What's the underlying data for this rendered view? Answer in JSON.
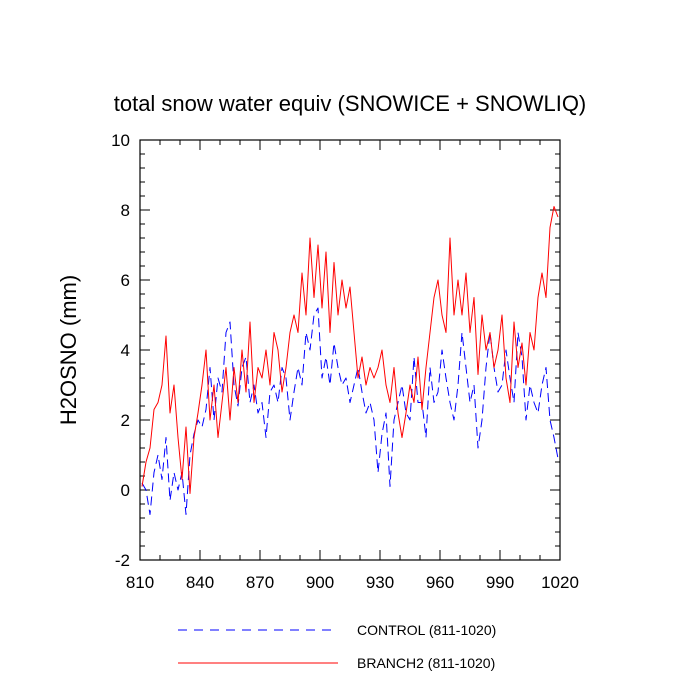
{
  "chart_data": {
    "type": "line",
    "title": "total snow water equiv (SNOWICE + SNOWLIQ)",
    "xlabel": "",
    "ylabel": "H2OSNO  (mm)",
    "xlim": [
      810,
      1020
    ],
    "ylim": [
      -2,
      10
    ],
    "xticks": [
      810,
      840,
      870,
      900,
      930,
      960,
      990,
      1020
    ],
    "xtick_labels": [
      "810",
      "840",
      "870",
      "900",
      "930",
      "960",
      "990",
      "1020"
    ],
    "yticks": [
      -2,
      0,
      2,
      4,
      6,
      8,
      10
    ],
    "ytick_labels": [
      "-2",
      "0",
      "2",
      "4",
      "6",
      "8",
      "10"
    ],
    "grid": false,
    "legend_position": "bottom",
    "series": [
      {
        "name": "CONTROL (811-1020)",
        "color": "#0000ff",
        "dash": "dashed",
        "x": [
          811,
          813,
          815,
          817,
          819,
          821,
          823,
          825,
          827,
          829,
          831,
          833,
          835,
          837,
          839,
          841,
          843,
          845,
          847,
          849,
          851,
          853,
          855,
          857,
          859,
          861,
          863,
          865,
          867,
          869,
          871,
          873,
          875,
          877,
          879,
          881,
          883,
          885,
          887,
          889,
          891,
          893,
          895,
          897,
          899,
          901,
          903,
          905,
          907,
          909,
          911,
          913,
          915,
          917,
          919,
          921,
          923,
          925,
          927,
          929,
          931,
          933,
          935,
          937,
          939,
          941,
          943,
          945,
          947,
          949,
          951,
          953,
          955,
          957,
          959,
          961,
          963,
          965,
          967,
          969,
          971,
          973,
          975,
          977,
          979,
          981,
          983,
          985,
          987,
          989,
          991,
          993,
          995,
          997,
          999,
          1001,
          1003,
          1005,
          1007,
          1009,
          1011,
          1013,
          1015,
          1017,
          1019
        ],
        "y": [
          0.2,
          0.0,
          -0.7,
          0.5,
          1.0,
          0.3,
          1.5,
          -0.3,
          0.5,
          0.0,
          0.5,
          -0.7,
          1.0,
          1.6,
          2.0,
          1.8,
          2.3,
          3.5,
          2.0,
          3.2,
          2.8,
          4.5,
          4.8,
          3.0,
          2.4,
          3.5,
          3.8,
          2.5,
          3.0,
          2.2,
          2.5,
          1.5,
          2.8,
          3.0,
          2.5,
          3.5,
          3.2,
          2.0,
          2.8,
          3.5,
          3.0,
          4.5,
          4.0,
          5.0,
          5.2,
          3.2,
          3.8,
          3.0,
          4.2,
          3.5,
          3.0,
          3.2,
          2.5,
          3.0,
          3.5,
          2.8,
          2.2,
          2.5,
          2.0,
          0.5,
          1.6,
          2.2,
          0.1,
          2.0,
          2.5,
          3.0,
          2.2,
          2.0,
          3.8,
          2.5,
          2.5,
          1.5,
          3.5,
          2.5,
          2.8,
          4.0,
          3.2,
          2.5,
          2.0,
          3.0,
          4.5,
          3.5,
          2.5,
          3.0,
          1.2,
          2.0,
          3.5,
          4.5,
          3.5,
          2.8,
          3.0,
          4.0,
          3.2,
          2.5,
          4.5,
          3.8,
          2.0,
          3.0,
          2.5,
          2.2,
          3.0,
          3.5,
          2.0,
          1.5,
          0.9
        ]
      },
      {
        "name": "BRANCH2 (811-1020)",
        "color": "#ff0000",
        "dash": "solid",
        "x": [
          811,
          813,
          815,
          817,
          819,
          821,
          823,
          825,
          827,
          829,
          831,
          833,
          835,
          837,
          839,
          841,
          843,
          845,
          847,
          849,
          851,
          853,
          855,
          857,
          859,
          861,
          863,
          865,
          867,
          869,
          871,
          873,
          875,
          877,
          879,
          881,
          883,
          885,
          887,
          889,
          891,
          893,
          895,
          897,
          899,
          901,
          903,
          905,
          907,
          909,
          911,
          913,
          915,
          917,
          919,
          921,
          923,
          925,
          927,
          929,
          931,
          933,
          935,
          937,
          939,
          941,
          943,
          945,
          947,
          949,
          951,
          953,
          955,
          957,
          959,
          961,
          963,
          965,
          967,
          969,
          971,
          973,
          975,
          977,
          979,
          981,
          983,
          985,
          987,
          989,
          991,
          993,
          995,
          997,
          999,
          1001,
          1003,
          1005,
          1007,
          1009,
          1011,
          1013,
          1015,
          1017,
          1019
        ],
        "y": [
          0.1,
          0.8,
          1.2,
          2.3,
          2.5,
          3.0,
          4.4,
          2.2,
          3.0,
          1.5,
          0.3,
          1.8,
          -0.1,
          1.5,
          2.2,
          3.0,
          4.0,
          2.0,
          3.0,
          1.5,
          2.5,
          3.5,
          2.0,
          3.5,
          2.5,
          4.0,
          2.8,
          4.8,
          2.5,
          3.5,
          3.2,
          4.0,
          3.0,
          4.5,
          4.0,
          2.8,
          3.5,
          4.5,
          5.0,
          4.5,
          6.2,
          5.0,
          7.2,
          5.5,
          7.0,
          5.2,
          6.8,
          4.5,
          6.5,
          5.0,
          6.0,
          5.2,
          5.8,
          4.5,
          3.2,
          3.8,
          3.0,
          3.5,
          3.2,
          3.5,
          4.0,
          3.0,
          2.5,
          3.5,
          2.2,
          1.5,
          2.2,
          3.0,
          2.5,
          3.8,
          2.3,
          3.5,
          4.5,
          5.5,
          6.0,
          5.0,
          4.5,
          7.2,
          5.0,
          6.0,
          5.0,
          6.2,
          4.5,
          5.5,
          3.3,
          5.0,
          4.0,
          4.5,
          3.5,
          4.0,
          5.0,
          3.2,
          2.5,
          4.8,
          3.5,
          4.2,
          3.0,
          4.5,
          4.0,
          5.5,
          6.2,
          5.5,
          7.5,
          8.1,
          7.8
        ]
      }
    ]
  }
}
